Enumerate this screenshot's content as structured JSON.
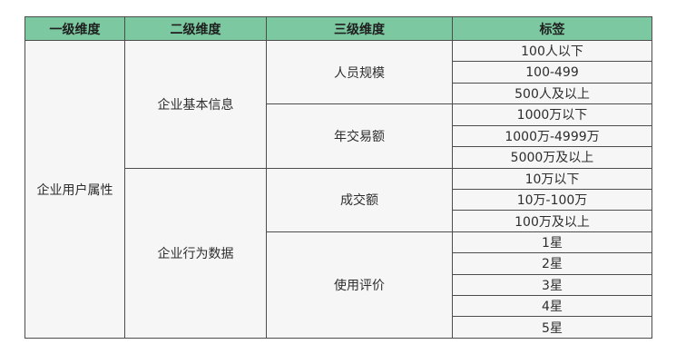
{
  "page": {
    "background_color": "#ffffff",
    "header_bg_color": "#7cc8a0",
    "header_text_color": "#1f1f1f",
    "cell_bg_color": "#f6f6f6",
    "cell_text_color": "#2d2d2d",
    "border_color": "#4d4d4d"
  },
  "table": {
    "headers": [
      "一级维度",
      "二级维度",
      "三级维度",
      "标签"
    ],
    "tree": {
      "label": "企业用户属性",
      "children": [
        {
          "label": "企业基本信息",
          "children": [
            {
              "label": "人员规模",
              "tags": [
                "100人以下",
                "100-499",
                "500人及以上"
              ]
            },
            {
              "label": "年交易额",
              "tags": [
                "1000万以下",
                "1000万-4999万",
                "5000万及以上"
              ]
            }
          ]
        },
        {
          "label": "企业行为数据",
          "children": [
            {
              "label": "成交额",
              "tags": [
                "10万以下",
                "10万-100万",
                "100万及以上"
              ]
            },
            {
              "label": "使用评价",
              "tags": [
                "1星",
                "2星",
                "3星",
                "4星",
                "5星"
              ]
            }
          ]
        }
      ]
    }
  },
  "chart_data": {
    "type": "table",
    "title": "",
    "columns": [
      "一级维度",
      "二级维度",
      "三级维度",
      "标签"
    ],
    "rows": [
      [
        "企业用户属性",
        "企业基本信息",
        "人员规模",
        "100人以下"
      ],
      [
        "企业用户属性",
        "企业基本信息",
        "人员规模",
        "100-499"
      ],
      [
        "企业用户属性",
        "企业基本信息",
        "人员规模",
        "500人及以上"
      ],
      [
        "企业用户属性",
        "企业基本信息",
        "年交易额",
        "1000万以下"
      ],
      [
        "企业用户属性",
        "企业基本信息",
        "年交易额",
        "1000万-4999万"
      ],
      [
        "企业用户属性",
        "企业基本信息",
        "年交易额",
        "5000万及以上"
      ],
      [
        "企业用户属性",
        "企业行为数据",
        "成交额",
        "10万以下"
      ],
      [
        "企业用户属性",
        "企业行为数据",
        "成交额",
        "10万-100万"
      ],
      [
        "企业用户属性",
        "企业行为数据",
        "成交额",
        "100万及以上"
      ],
      [
        "企业用户属性",
        "企业行为数据",
        "使用评价",
        "1星"
      ],
      [
        "企业用户属性",
        "企业行为数据",
        "使用评价",
        "2星"
      ],
      [
        "企业用户属性",
        "企业行为数据",
        "使用评价",
        "3星"
      ],
      [
        "企业用户属性",
        "企业行为数据",
        "使用评价",
        "4星"
      ],
      [
        "企业用户属性",
        "企业行为数据",
        "使用评价",
        "5星"
      ]
    ],
    "layout": {
      "merged_cells": true,
      "header_fill": "#7cc8a0",
      "cell_fill": "#f6f6f6"
    }
  }
}
